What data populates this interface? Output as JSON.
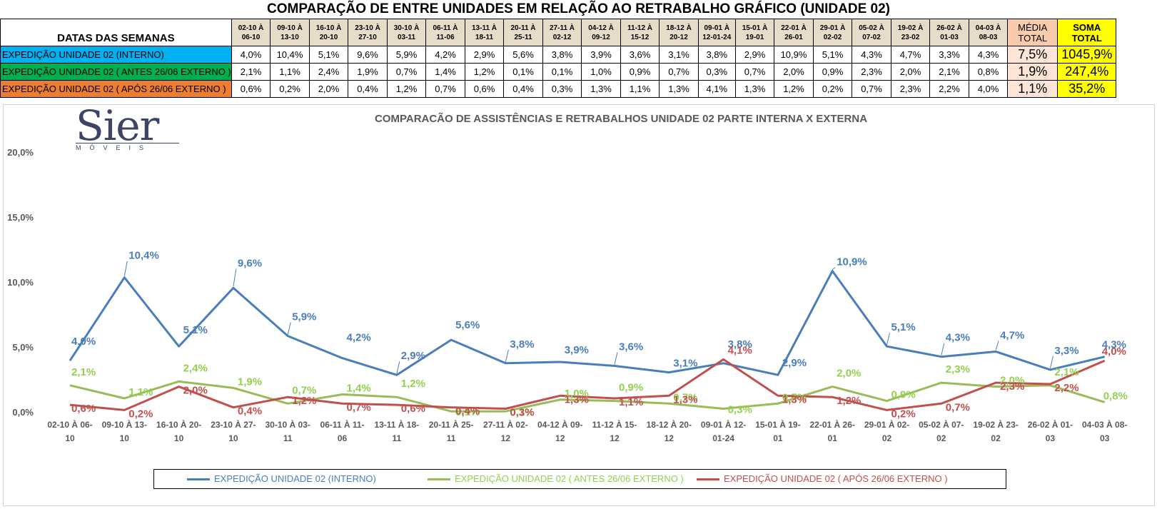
{
  "page_title": "COMPARAÇÃO DE ENTRE UNIDADES EM RELAÇÃO AO RETRABALHO GRÁFICO (UNIDADE 02)",
  "table": {
    "corner_label": "DATAS DAS SEMANAS",
    "date_headers": [
      [
        "02-10 À",
        "06-10"
      ],
      [
        "09-10 À",
        "13-10"
      ],
      [
        "16-10 À",
        "20-10"
      ],
      [
        "23-10 À",
        "27-10"
      ],
      [
        "30-10 À",
        "03-11"
      ],
      [
        "06-11 À",
        "11-06"
      ],
      [
        "13-11 À",
        "18-11"
      ],
      [
        "20-11 À",
        "25-11"
      ],
      [
        "27-11 À",
        "02-12"
      ],
      [
        "04-12 À",
        "09-12"
      ],
      [
        "11-12 À",
        "15-12"
      ],
      [
        "18-12 À",
        "20-12"
      ],
      [
        "09-01 À",
        "12-01-24"
      ],
      [
        "15-01 À",
        "19-01"
      ],
      [
        "22-01 À",
        "26-01"
      ],
      [
        "29-01 À",
        "02-02"
      ],
      [
        "05-02 À",
        "07-02"
      ],
      [
        "19-02 À",
        "23-02"
      ],
      [
        "26-02 À",
        "01-03"
      ],
      [
        "04-03 À",
        "08-03"
      ]
    ],
    "media_header": [
      "MÉDIA",
      "TOTAL"
    ],
    "soma_header": [
      "SOMA",
      "TOTAL"
    ],
    "rows": [
      {
        "label": "EXPEDIÇÃO UNIDADE 02 (INTERNO)",
        "color": "#00b0f0",
        "values": [
          "4,0%",
          "10,4%",
          "5,1%",
          "9,6%",
          "5,9%",
          "4,2%",
          "2,9%",
          "5,6%",
          "3,8%",
          "3,9%",
          "3,6%",
          "3,1%",
          "3,8%",
          "2,9%",
          "10,9%",
          "5,1%",
          "4,3%",
          "4,7%",
          "3,3%",
          "4,3%"
        ],
        "media": "7,5%",
        "soma": "1045,9%"
      },
      {
        "label": "EXPEDIÇÃO UNIDADE 02 ( ANTES 26/06 EXTERNO )",
        "color": "#00b050",
        "values": [
          "2,1%",
          "1,1%",
          "2,4%",
          "1,9%",
          "0,7%",
          "1,4%",
          "1,2%",
          "0,1%",
          "0,1%",
          "1,0%",
          "0,9%",
          "0,7%",
          "0,3%",
          "0,7%",
          "2,0%",
          "0,9%",
          "2,3%",
          "2,0%",
          "2,1%",
          "0,8%"
        ],
        "media": "1,9%",
        "soma": "247,4%"
      },
      {
        "label": "EXPEDIÇÃO UNIDADE 02 ( APÓS 26/06 EXTERNO )",
        "color": "#ed7d31",
        "values": [
          "0,6%",
          "0,2%",
          "2,0%",
          "0,4%",
          "1,2%",
          "0,7%",
          "0,6%",
          "0,4%",
          "0,3%",
          "1,3%",
          "1,1%",
          "1,3%",
          "4,1%",
          "1,3%",
          "1,2%",
          "0,2%",
          "0,7%",
          "2,3%",
          "2,2%",
          "4,0%"
        ],
        "media": "1,1%",
        "soma": "35,2%"
      }
    ]
  },
  "logo": {
    "word": "Sier",
    "sub": "MÓVEIS"
  },
  "chart_data": {
    "type": "line",
    "title": "COMPARACÃO DE ASSISTÊNCIAS E RETRABALHOS UNIDADE 02 PARTE INTERNA X EXTERNA",
    "categories": [
      [
        "02-10 À 06-",
        "10"
      ],
      [
        "09-10 À 13-",
        "10"
      ],
      [
        "16-10 À 20-",
        "10"
      ],
      [
        "23-10 À 27-",
        "10"
      ],
      [
        "30-10 À 03-",
        "11"
      ],
      [
        "06-11 À 11-",
        "06"
      ],
      [
        "13-11 À 18-",
        "11"
      ],
      [
        "20-11 À 25-",
        "11"
      ],
      [
        "27-11 À 02-",
        "12"
      ],
      [
        "04-12 À 09-",
        "12"
      ],
      [
        "11-12 À 15-",
        "12"
      ],
      [
        "18-12 À 20-",
        "12"
      ],
      [
        "09-01 À 12-",
        "01-24"
      ],
      [
        "15-01 À 19-",
        "01"
      ],
      [
        "22-01 À 26-",
        "01"
      ],
      [
        "29-01 À 02-",
        "02"
      ],
      [
        "05-02 À 07-",
        "02"
      ],
      [
        "19-02 À 23-",
        "02"
      ],
      [
        "26-02 À 01-",
        "03"
      ],
      [
        "04-03 À 08-",
        "03"
      ]
    ],
    "yticks": [
      "0,0%",
      "5,0%",
      "10,0%",
      "15,0%",
      "20,0%"
    ],
    "ylim": [
      0,
      20
    ],
    "series": [
      {
        "name": "EXPEDIÇÃO UNIDADE 02 (INTERNO)",
        "color": "#4a7ebb",
        "label_color": "#4a7ebb",
        "values": [
          4.0,
          10.4,
          5.1,
          9.6,
          5.9,
          4.2,
          2.9,
          5.6,
          3.8,
          3.9,
          3.6,
          3.1,
          3.8,
          2.9,
          10.9,
          5.1,
          4.3,
          4.7,
          3.3,
          4.3
        ],
        "labels": [
          "4,0%",
          "10,4%",
          "5,1%",
          "9,6%",
          "5,9%",
          "4,2%",
          "2,9%",
          "5,6%",
          "3,8%",
          "3,9%",
          "3,6%",
          "3,1%",
          "3,8%",
          "2,9%",
          "10,9%",
          "5,1%",
          "4,3%",
          "4,7%",
          "3,3%",
          "4,3%"
        ]
      },
      {
        "name": "EXPEDIÇÃO UNIDADE 02 ( ANTES 26/06 EXTERNO )",
        "color": "#9bbb59",
        "label_color": "#92d050",
        "values": [
          2.1,
          1.1,
          2.4,
          1.9,
          0.7,
          1.4,
          1.2,
          0.1,
          0.1,
          1.0,
          0.9,
          0.7,
          0.3,
          0.7,
          2.0,
          0.9,
          2.3,
          2.0,
          2.1,
          0.8
        ],
        "labels": [
          "2,1%",
          "1,1%",
          "2,4%",
          "1,9%",
          "0,7%",
          "1,4%",
          "1,2%",
          "0,1%",
          "0,1%",
          "1,0%",
          "0,9%",
          "0,7%",
          "0,3%",
          "0,7%",
          "2,0%",
          "0,9%",
          "2,3%",
          "2,0%",
          "2,1%",
          "0,8%"
        ]
      },
      {
        "name": "EXPEDIÇÃO UNIDADE 02 ( APÓS 26/06 EXTERNO )",
        "color": "#c0504d",
        "label_color": "#c0504d",
        "values": [
          0.6,
          0.2,
          2.0,
          0.4,
          1.2,
          0.7,
          0.6,
          0.4,
          0.3,
          1.3,
          1.1,
          1.3,
          4.1,
          1.3,
          1.2,
          0.2,
          0.7,
          2.3,
          2.2,
          4.0
        ],
        "labels": [
          "0,6%",
          "0,2%",
          "2,0%",
          "0,4%",
          "1,2%",
          "0,7%",
          "0,6%",
          "0,4%",
          "0,3%",
          "1,3%",
          "1,1%",
          "1,3%",
          "4,1%",
          "1,3%",
          "1,2%",
          "0,2%",
          "0,7%",
          "2,3%",
          "2,2%",
          "4,0%"
        ]
      }
    ],
    "legend_position": "bottom",
    "grid": false
  }
}
